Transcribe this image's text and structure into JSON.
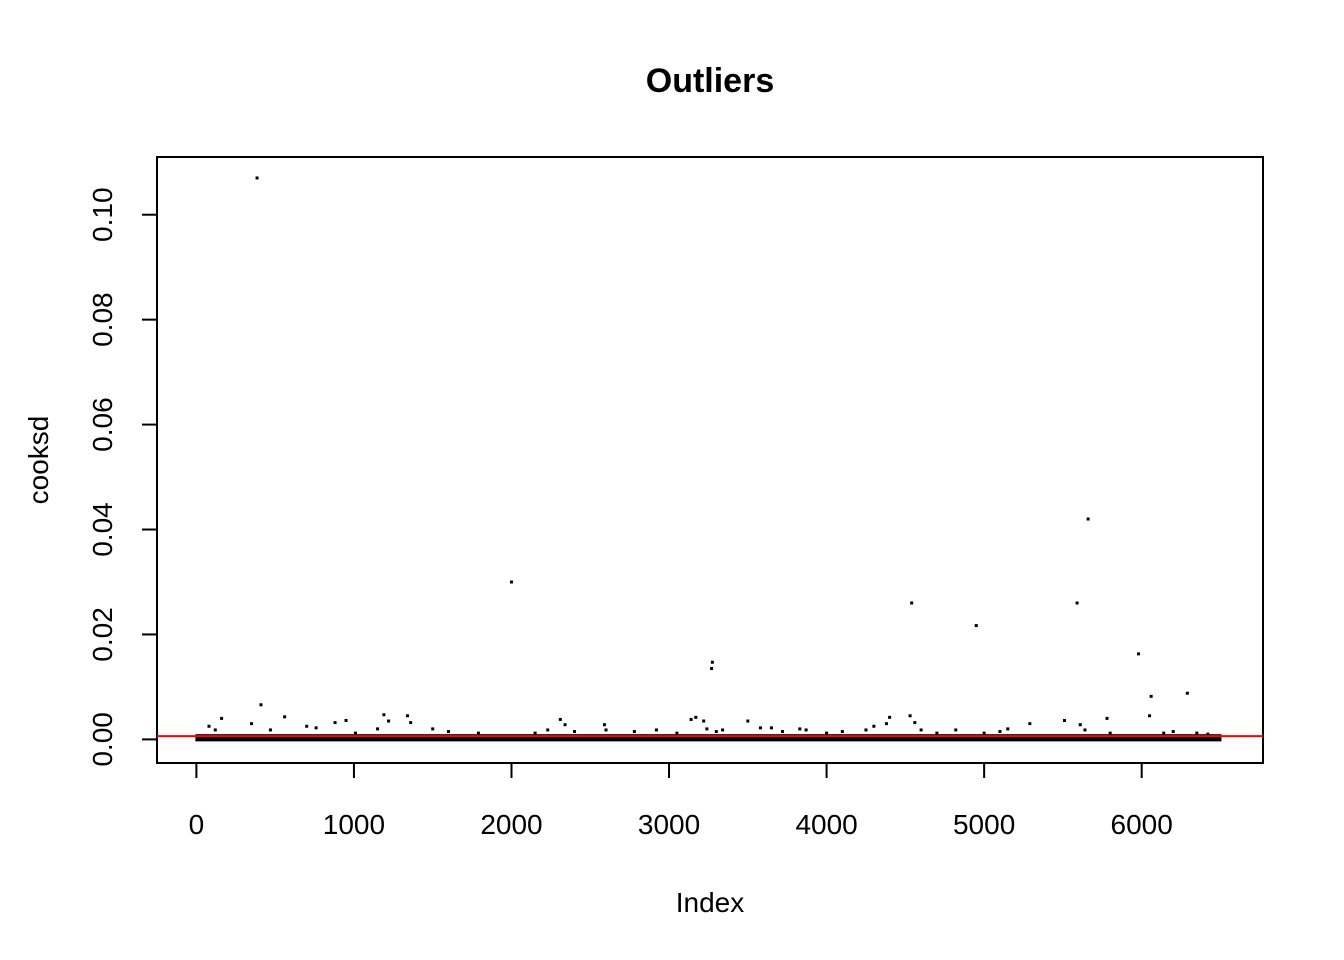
{
  "chart_data": {
    "type": "scatter",
    "title": "Outliers",
    "xlabel": "Index",
    "ylabel": "cooksd",
    "xlim": [
      -250,
      6770
    ],
    "ylim": [
      -0.0045,
      0.111
    ],
    "x_ticks": [
      "0",
      "1000",
      "2000",
      "3000",
      "4000",
      "5000",
      "6000"
    ],
    "y_ticks": [
      "0.00",
      "0.02",
      "0.04",
      "0.06",
      "0.08",
      "0.10"
    ],
    "n_points": 6500,
    "baseline_band": [
      0,
      0.0008
    ],
    "cutoff_line": {
      "y": 0.00062,
      "color": "#ff0000"
    },
    "point_color": "#000000",
    "grid": false,
    "outliers": [
      {
        "x": 385,
        "y": 0.107
      },
      {
        "x": 410,
        "y": 0.0066
      },
      {
        "x": 350,
        "y": 0.003
      },
      {
        "x": 160,
        "y": 0.004
      },
      {
        "x": 80,
        "y": 0.0025
      },
      {
        "x": 120,
        "y": 0.0018
      },
      {
        "x": 560,
        "y": 0.0043
      },
      {
        "x": 470,
        "y": 0.0018
      },
      {
        "x": 700,
        "y": 0.0025
      },
      {
        "x": 760,
        "y": 0.0022
      },
      {
        "x": 880,
        "y": 0.0032
      },
      {
        "x": 950,
        "y": 0.0036
      },
      {
        "x": 1010,
        "y": 0.0012
      },
      {
        "x": 1150,
        "y": 0.002
      },
      {
        "x": 1190,
        "y": 0.0047
      },
      {
        "x": 1220,
        "y": 0.0035
      },
      {
        "x": 1340,
        "y": 0.0045
      },
      {
        "x": 1360,
        "y": 0.0032
      },
      {
        "x": 1500,
        "y": 0.002
      },
      {
        "x": 1600,
        "y": 0.0015
      },
      {
        "x": 1790,
        "y": 0.0012
      },
      {
        "x": 2000,
        "y": 0.03
      },
      {
        "x": 2150,
        "y": 0.0012
      },
      {
        "x": 2230,
        "y": 0.0018
      },
      {
        "x": 2310,
        "y": 0.0038
      },
      {
        "x": 2340,
        "y": 0.0028
      },
      {
        "x": 2400,
        "y": 0.0015
      },
      {
        "x": 2590,
        "y": 0.0028
      },
      {
        "x": 2600,
        "y": 0.0018
      },
      {
        "x": 2780,
        "y": 0.0015
      },
      {
        "x": 2920,
        "y": 0.0018
      },
      {
        "x": 3050,
        "y": 0.0012
      },
      {
        "x": 3140,
        "y": 0.0038
      },
      {
        "x": 3170,
        "y": 0.0042
      },
      {
        "x": 3220,
        "y": 0.0035
      },
      {
        "x": 3240,
        "y": 0.002
      },
      {
        "x": 3270,
        "y": 0.0135
      },
      {
        "x": 3275,
        "y": 0.0147
      },
      {
        "x": 3300,
        "y": 0.0015
      },
      {
        "x": 3340,
        "y": 0.0018
      },
      {
        "x": 3500,
        "y": 0.0035
      },
      {
        "x": 3580,
        "y": 0.0022
      },
      {
        "x": 3650,
        "y": 0.0022
      },
      {
        "x": 3720,
        "y": 0.0015
      },
      {
        "x": 3830,
        "y": 0.002
      },
      {
        "x": 3870,
        "y": 0.0018
      },
      {
        "x": 4000,
        "y": 0.0012
      },
      {
        "x": 4100,
        "y": 0.0015
      },
      {
        "x": 4250,
        "y": 0.0018
      },
      {
        "x": 4300,
        "y": 0.0025
      },
      {
        "x": 4380,
        "y": 0.003
      },
      {
        "x": 4400,
        "y": 0.0042
      },
      {
        "x": 4540,
        "y": 0.026
      },
      {
        "x": 4530,
        "y": 0.0045
      },
      {
        "x": 4560,
        "y": 0.0032
      },
      {
        "x": 4600,
        "y": 0.0018
      },
      {
        "x": 4700,
        "y": 0.0012
      },
      {
        "x": 4820,
        "y": 0.0018
      },
      {
        "x": 4950,
        "y": 0.0217
      },
      {
        "x": 5000,
        "y": 0.0012
      },
      {
        "x": 5100,
        "y": 0.0015
      },
      {
        "x": 5150,
        "y": 0.002
      },
      {
        "x": 5290,
        "y": 0.003
      },
      {
        "x": 5510,
        "y": 0.0036
      },
      {
        "x": 5590,
        "y": 0.026
      },
      {
        "x": 5610,
        "y": 0.0028
      },
      {
        "x": 5640,
        "y": 0.0018
      },
      {
        "x": 5660,
        "y": 0.042
      },
      {
        "x": 5780,
        "y": 0.004
      },
      {
        "x": 5800,
        "y": 0.0012
      },
      {
        "x": 5980,
        "y": 0.0163
      },
      {
        "x": 6060,
        "y": 0.0082
      },
      {
        "x": 6050,
        "y": 0.0045
      },
      {
        "x": 6140,
        "y": 0.0012
      },
      {
        "x": 6200,
        "y": 0.0015
      },
      {
        "x": 6290,
        "y": 0.0088
      },
      {
        "x": 6350,
        "y": 0.0012
      },
      {
        "x": 6420,
        "y": 0.001
      }
    ]
  }
}
